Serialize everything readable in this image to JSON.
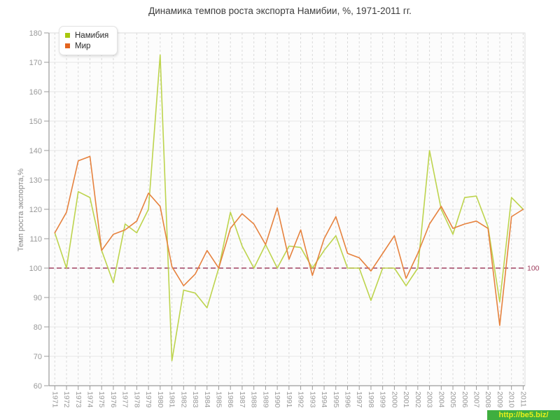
{
  "title": "Динамика темпов роста экспорта Намибии, %, 1971-2011 гг.",
  "y_axis_title": "Темп роста экспорта,%",
  "watermark": "http://be5.biz/",
  "legend": {
    "position": "top-left",
    "items": [
      {
        "label": "Намибия",
        "color": "#a8c80e"
      },
      {
        "label": "Мир",
        "color": "#e2641f"
      }
    ]
  },
  "colors": {
    "namibia_line": "#bdd44d",
    "mir_line": "#e6823e",
    "reference_line": "#a04060",
    "grid_horizontal": "#e6e6e6",
    "grid_vertical": "#dadada",
    "axis": "#9a9a9a",
    "tick_text": "#999999",
    "title_text": "#3c3c3c",
    "plot_background": "#fcfcfc",
    "watermark_background": "#3fae3f",
    "watermark_text": "#e6ef1a"
  },
  "chart_data": {
    "type": "line",
    "title": "Динамика темпов роста экспорта Намибии, %, 1971-2011 гг.",
    "xlabel": "",
    "ylabel": "Темп роста экспорта,%",
    "ylim": [
      60,
      180
    ],
    "y_ticks": [
      60,
      70,
      80,
      90,
      100,
      110,
      120,
      130,
      140,
      150,
      160,
      170,
      180
    ],
    "grid": true,
    "legend_position": "top-left",
    "reference_line": {
      "value": 100,
      "label": "100",
      "color": "#a04060"
    },
    "x": [
      1971,
      1972,
      1973,
      1974,
      1975,
      1976,
      1977,
      1978,
      1979,
      1980,
      1981,
      1982,
      1983,
      1984,
      1985,
      1986,
      1987,
      1988,
      1989,
      1990,
      1991,
      1992,
      1993,
      1994,
      1995,
      1996,
      1997,
      1998,
      1999,
      2000,
      2001,
      2002,
      2003,
      2004,
      2005,
      2006,
      2007,
      2008,
      2009,
      2010,
      2011
    ],
    "series": [
      {
        "name": "Намибия",
        "color": "#bdd44d",
        "values": [
          112,
          100,
          126,
          124,
          106,
          95,
          115,
          112,
          120,
          172.5,
          68.5,
          92.5,
          91.5,
          86.5,
          100,
          119,
          107.5,
          100,
          108,
          100,
          107.5,
          107,
          100,
          106,
          111,
          100,
          100,
          89,
          100,
          100,
          94,
          100,
          140,
          120,
          111.5,
          124,
          124.5,
          114,
          88.5,
          124,
          120
        ]
      },
      {
        "name": "Мир",
        "color": "#e6823e",
        "values": [
          112,
          119,
          136.5,
          138,
          106,
          111.5,
          113,
          116,
          125.5,
          121,
          100.5,
          94,
          98,
          106,
          100,
          113.5,
          118.5,
          115,
          108,
          120.5,
          103,
          113,
          97.5,
          110,
          117.5,
          105,
          103.5,
          99,
          105,
          111,
          96.5,
          105,
          115,
          121,
          113.5,
          115,
          116,
          113.5,
          80.5,
          117.5,
          120
        ]
      }
    ]
  }
}
